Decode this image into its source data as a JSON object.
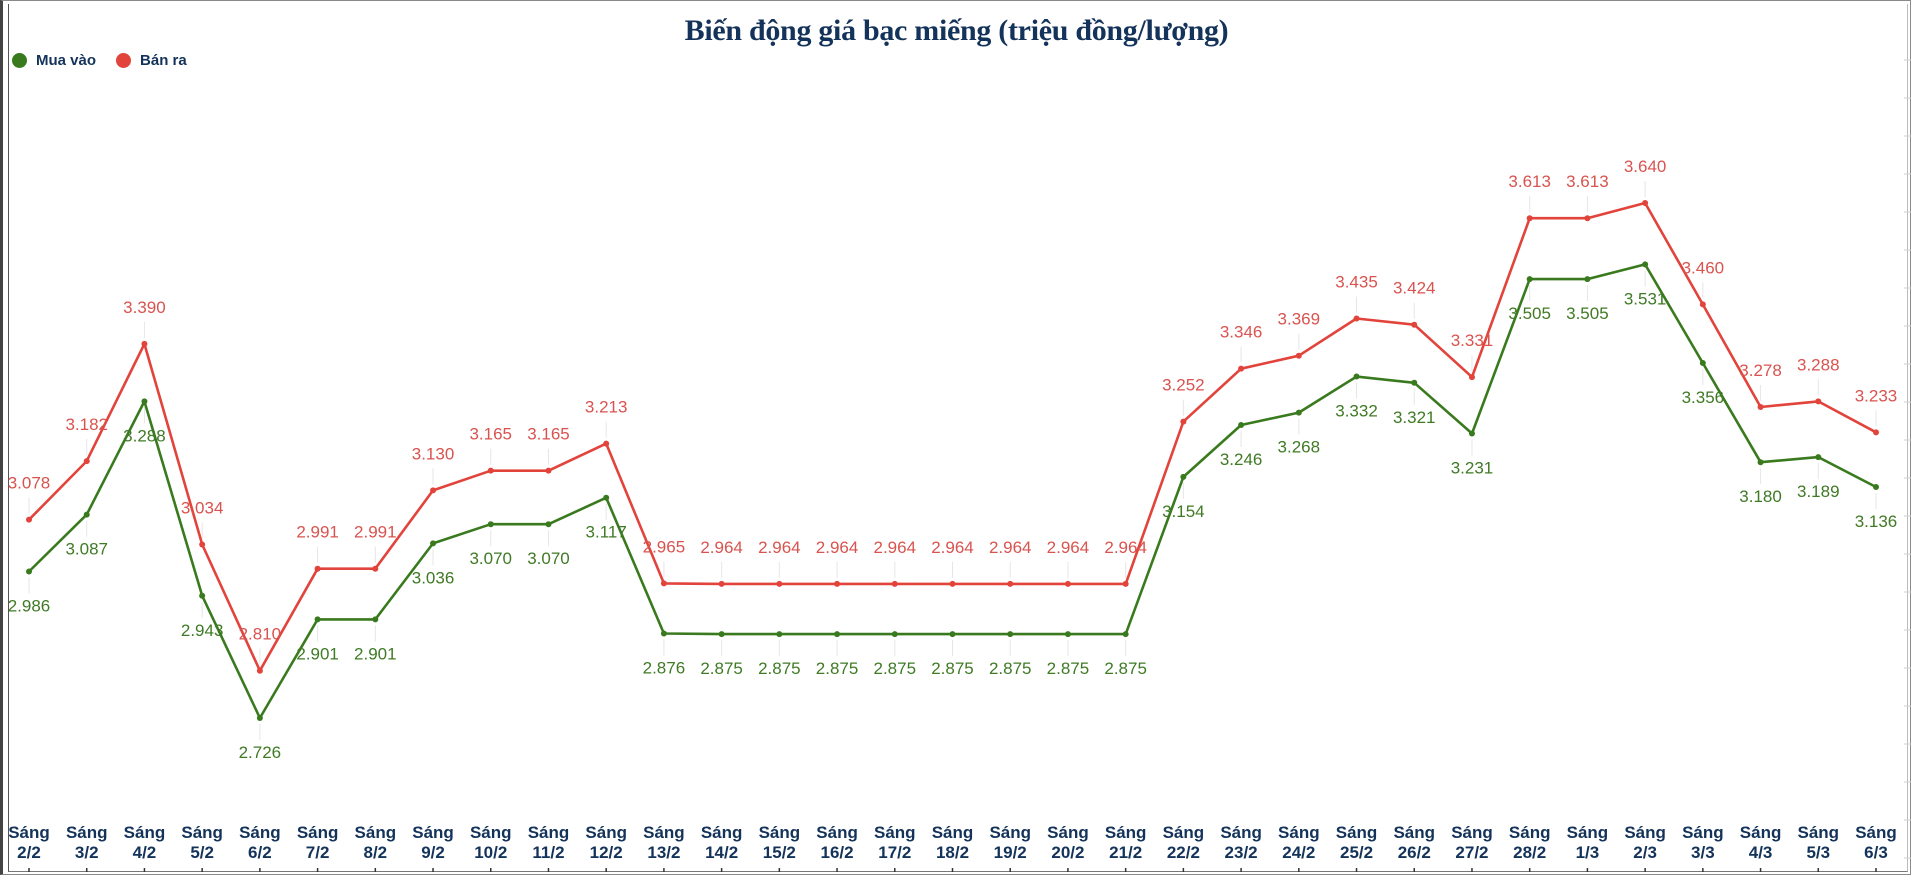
{
  "title": "Biến động giá bạc miếng (triệu đồng/lượng)",
  "legend": [
    {
      "label": "Mua vào",
      "color": "#3a7a1e"
    },
    {
      "label": "Bán ra",
      "color": "#e2433b"
    }
  ],
  "chart_data": {
    "type": "line",
    "title": "Biến động giá bạc miếng (triệu đồng/lượng)",
    "xlabel": "",
    "ylabel": "",
    "grid": false,
    "legend_position": "top-left",
    "categories": [
      "Sáng 2/2",
      "Sáng 3/2",
      "Sáng 4/2",
      "Sáng 5/2",
      "Sáng 6/2",
      "Sáng 7/2",
      "Sáng 8/2",
      "Sáng 9/2",
      "Sáng 10/2",
      "Sáng 11/2",
      "Sáng 12/2",
      "Sáng 13/2",
      "Sáng 14/2",
      "Sáng 15/2",
      "Sáng 16/2",
      "Sáng 17/2",
      "Sáng 18/2",
      "Sáng 19/2",
      "Sáng 20/2",
      "Sáng 21/2",
      "Sáng 22/2",
      "Sáng 23/2",
      "Sáng 24/2",
      "Sáng 25/2",
      "Sáng 26/2",
      "Sáng 27/2",
      "Sáng 28/2",
      "Sáng 1/3",
      "Sáng 2/3",
      "Sáng 3/3",
      "Sáng 4/3",
      "Sáng 5/3",
      "Sáng 6/3"
    ],
    "series": [
      {
        "name": "Mua vào",
        "color": "#3a7a1e",
        "values": [
          2.986,
          3.087,
          3.288,
          2.943,
          2.726,
          2.901,
          2.901,
          3.036,
          3.07,
          3.07,
          3.117,
          2.876,
          2.875,
          2.875,
          2.875,
          2.875,
          2.875,
          2.875,
          2.875,
          2.875,
          3.154,
          3.246,
          3.268,
          3.332,
          3.321,
          3.231,
          3.505,
          3.505,
          3.531,
          3.356,
          3.18,
          3.189,
          3.136
        ]
      },
      {
        "name": "Bán ra",
        "color": "#e2433b",
        "values": [
          3.078,
          3.182,
          3.39,
          3.034,
          2.81,
          2.991,
          2.991,
          3.13,
          3.165,
          3.165,
          3.213,
          2.965,
          2.964,
          2.964,
          2.964,
          2.964,
          2.964,
          2.964,
          2.964,
          2.964,
          3.252,
          3.346,
          3.369,
          3.435,
          3.424,
          3.331,
          3.613,
          3.613,
          3.64,
          3.46,
          3.278,
          3.288,
          3.233
        ]
      }
    ],
    "label_strings": {
      "Mua vào": [
        "2.986",
        "3.087",
        "3.288",
        "2.943",
        "2.726",
        "2.901",
        "2.901",
        "3.036",
        "3.070",
        "3.070",
        "3.117",
        "2.876",
        "2.875",
        "2.875",
        "2.875",
        "2.875",
        "2.875",
        "2.875",
        "2.875",
        "2.875",
        "3.154",
        "3.246",
        "3.268",
        "3.332",
        "3.321",
        "3.231",
        "3.505",
        "3.505",
        "3.531",
        "3.356",
        "3.180",
        "3.189",
        "3.136"
      ],
      "Bán ra": [
        "3.078",
        "3.182",
        "3.390",
        "3.034",
        "2.810",
        "2.991",
        "2.991",
        "3.130",
        "3.165",
        "3.165",
        "3.213",
        "2.965",
        "2.964",
        "2.964",
        "2.964",
        "2.964",
        "2.964",
        "2.964",
        "2.964",
        "2.964",
        "3.252",
        "3.346",
        "3.369",
        "3.435",
        "3.424",
        "3.331",
        "3.613",
        "3.613",
        "3.640",
        "3.460",
        "3.278",
        "3.288",
        "3.233"
      ]
    }
  }
}
